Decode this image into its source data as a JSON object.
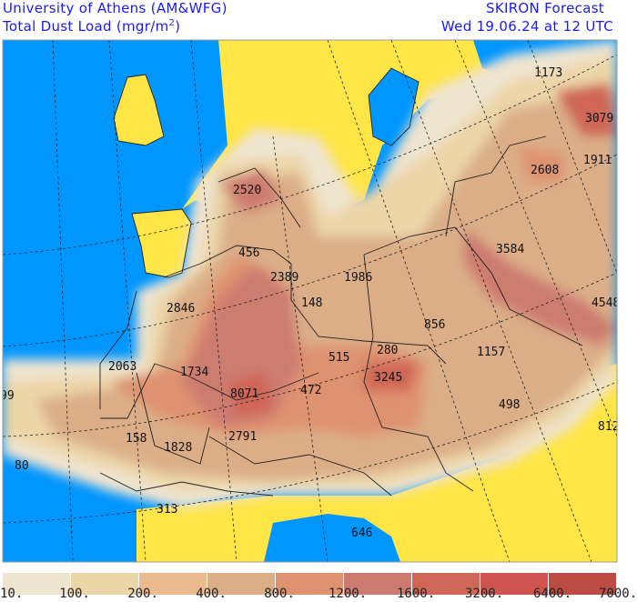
{
  "header": {
    "institution": "University of Athens (AM&WFG)",
    "field": "Total Dust Load (mgr/m",
    "field_sup": "2",
    "field_close": ")",
    "model": "SKIRON Forecast",
    "valid_time": "Wed 19.06.24 at 12 UTC"
  },
  "map": {
    "colors": {
      "ocean": "#0096ff",
      "land": "#ffe545",
      "border": "#222222"
    },
    "labels": [
      "1173",
      "3079",
      "2608",
      "1911",
      "2520",
      "3584",
      "456",
      "2389",
      "1986",
      "148",
      "2846",
      "856",
      "4548",
      "515",
      "280",
      "1157",
      "2063",
      "1734",
      "3245",
      "99",
      "8071",
      "472",
      "498",
      "812",
      "158",
      "1828",
      "2791",
      "80",
      "313",
      "646"
    ]
  },
  "legend": {
    "colors": [
      "#efe4cf",
      "#ecd6a8",
      "#ebbb8f",
      "#dbae88",
      "#df9270",
      "#cd7b70",
      "#cf6657",
      "#cf5450",
      "#bb4b43"
    ],
    "ticks": [
      "10.",
      "100.",
      "200.",
      "400.",
      "800.",
      "1200.",
      "1600.",
      "3200.",
      "6400.",
      "7000."
    ]
  }
}
